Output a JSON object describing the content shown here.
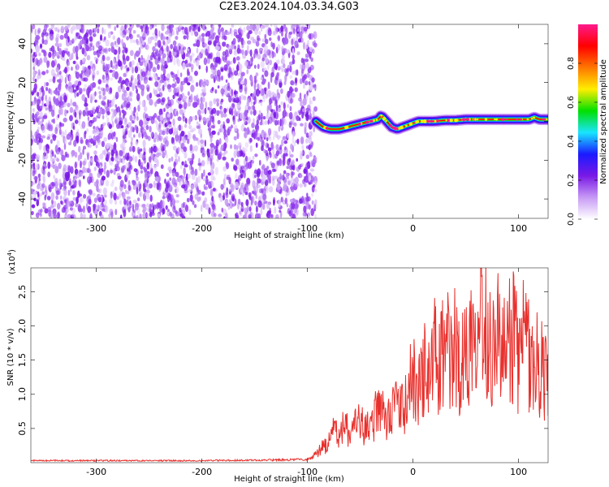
{
  "chart_data": [
    {
      "type": "heatmap",
      "title": "C2E3.2024.104.03.34.G03",
      "xlabel": "Height of straight line (km)",
      "ylabel": "Frequency (Hz)",
      "xlim": [
        -362,
        128
      ],
      "ylim": [
        -50,
        50
      ],
      "xticks": [
        -300,
        -200,
        -100,
        0,
        100
      ],
      "yticks": [
        -40,
        -20,
        0,
        20,
        40
      ],
      "colorbar": {
        "label": "Normalized spectral amplitude",
        "range": [
          0.0,
          1.0
        ],
        "ticks": [
          0.0,
          0.2,
          0.4,
          0.6,
          0.8
        ],
        "colors": [
          "#ffffff",
          "#c79af5",
          "#7a19e6",
          "#1a1aff",
          "#19e5ff",
          "#00e000",
          "#ffee00",
          "#ff7700",
          "#ff0000",
          "#ff1a8c"
        ]
      },
      "noise_region": {
        "x_from": -362,
        "x_to": -92
      },
      "signal_track": {
        "x": [
          -92,
          -85,
          -78,
          -70,
          -62,
          -55,
          -48,
          -40,
          -33,
          -30,
          -25,
          -20,
          -15,
          -10,
          -5,
          0,
          5,
          10,
          20,
          30,
          40,
          50,
          60,
          70,
          80,
          90,
          100,
          110,
          115,
          120,
          128
        ],
        "y": [
          0,
          -3,
          -4,
          -4,
          -3,
          -2,
          -1,
          0,
          1,
          3,
          0,
          -3,
          -4,
          -3,
          -2,
          -1,
          0,
          0,
          0,
          0.5,
          0.5,
          1,
          1,
          1,
          1,
          1,
          1,
          1,
          2,
          1,
          1
        ]
      }
    },
    {
      "type": "line",
      "xlabel": "Height of straight line (km)",
      "ylabel": "SNR (10 * v/v)",
      "y_multiplier_label": "(x10",
      "y_multiplier_exp": "4",
      "xlim": [
        -362,
        128
      ],
      "ylim": [
        0,
        2.85
      ],
      "xticks": [
        -300,
        -200,
        -100,
        0,
        100
      ],
      "yticks": [
        0.5,
        1.0,
        1.5,
        2.0,
        2.5
      ],
      "ytick_labels": [
        "0.5",
        "1.0",
        "1.5",
        "2.0",
        "2.5"
      ],
      "color": "#e8302c",
      "series": [
        {
          "x": [
            -362,
            -300,
            -200,
            -120,
            -100,
            -95,
            -90,
            -85,
            -80,
            -75,
            -70,
            -65,
            -60,
            -55,
            -50,
            -45,
            -40,
            -35,
            -30,
            -25,
            -20,
            -15,
            -10,
            -5,
            0,
            5,
            10,
            15,
            20,
            25,
            30,
            35,
            40,
            45,
            50,
            55,
            60,
            63,
            66,
            70,
            75,
            80,
            85,
            90,
            95,
            100,
            105,
            110,
            115,
            120,
            125,
            128
          ],
          "y": [
            0.03,
            0.03,
            0.03,
            0.04,
            0.05,
            0.08,
            0.15,
            0.25,
            0.3,
            0.45,
            0.4,
            0.55,
            0.45,
            0.5,
            0.6,
            0.45,
            0.55,
            0.7,
            0.75,
            0.6,
            0.9,
            0.8,
            0.75,
            0.95,
            1.3,
            1.0,
            1.4,
            1.2,
            1.6,
            1.35,
            1.8,
            1.5,
            1.7,
            1.4,
            1.6,
            1.9,
            2.3,
            2.8,
            2.2,
            1.9,
            1.7,
            2.0,
            1.5,
            1.7,
            1.9,
            1.5,
            1.8,
            1.6,
            1.45,
            1.4,
            1.35,
            1.25
          ]
        }
      ]
    }
  ]
}
